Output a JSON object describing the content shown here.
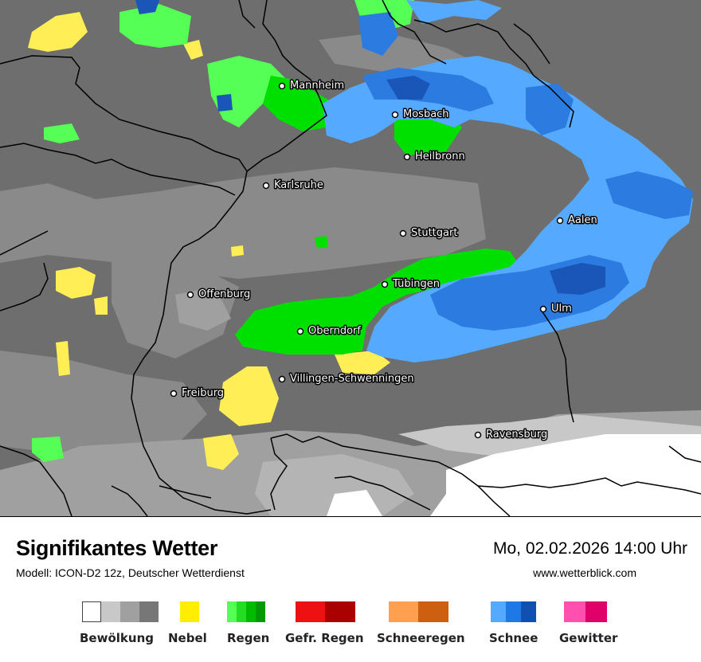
{
  "map": {
    "cities": [
      {
        "name": "Mannheim"
      },
      {
        "name": "Mosbach"
      },
      {
        "name": "Heilbronn"
      },
      {
        "name": "Karlsruhe"
      },
      {
        "name": "Stuttgart"
      },
      {
        "name": "Aalen"
      },
      {
        "name": "Tübingen"
      },
      {
        "name": "Offenburg"
      },
      {
        "name": "Oberndorf"
      },
      {
        "name": "Ulm"
      },
      {
        "name": "Villingen-Schwenningen"
      },
      {
        "name": "Freiburg"
      },
      {
        "name": "Ravensburg"
      }
    ],
    "colors": {
      "background": "#6e6e6e",
      "cloud_light": "#c8c8c8",
      "cloud_mid": "#a0a0a0",
      "cloud_dark": "#8a8a8a",
      "fog": "#ffee55",
      "rain": "#00e000",
      "rain_light": "#55ff55",
      "snow_light": "#55aaff",
      "snow_mid": "#2b7be0",
      "snow_dark": "#1a55b8",
      "border": "#000000"
    }
  },
  "footer": {
    "title": "Signifikantes Wetter",
    "subtitle": "Modell: ICON-D2 12z, Deutscher Wetterdienst",
    "datetime": "Mo, 02.02.2026 14:00 Uhr",
    "website": "www.wetterblick.com"
  },
  "legend": [
    {
      "label": "Bewölkung",
      "colors": [
        "#ffffff",
        "#c8c8c8",
        "#a0a0a0",
        "#777777"
      ]
    },
    {
      "label": "Nebel",
      "colors": [
        "#ffee00"
      ]
    },
    {
      "label": "Regen",
      "colors": [
        "#55ff55",
        "#22dd22",
        "#00bb00",
        "#009900"
      ]
    },
    {
      "label": "Gefr. Regen",
      "colors": [
        "#ee1111",
        "#aa0000"
      ]
    },
    {
      "label": "Schneeregen",
      "colors": [
        "#ffa050",
        "#cc6010"
      ]
    },
    {
      "label": "Schnee",
      "colors": [
        "#55aaff",
        "#1e78e6",
        "#1050b0"
      ]
    },
    {
      "label": "Gewitter",
      "colors": [
        "#ff50b0",
        "#e0006a"
      ]
    }
  ]
}
